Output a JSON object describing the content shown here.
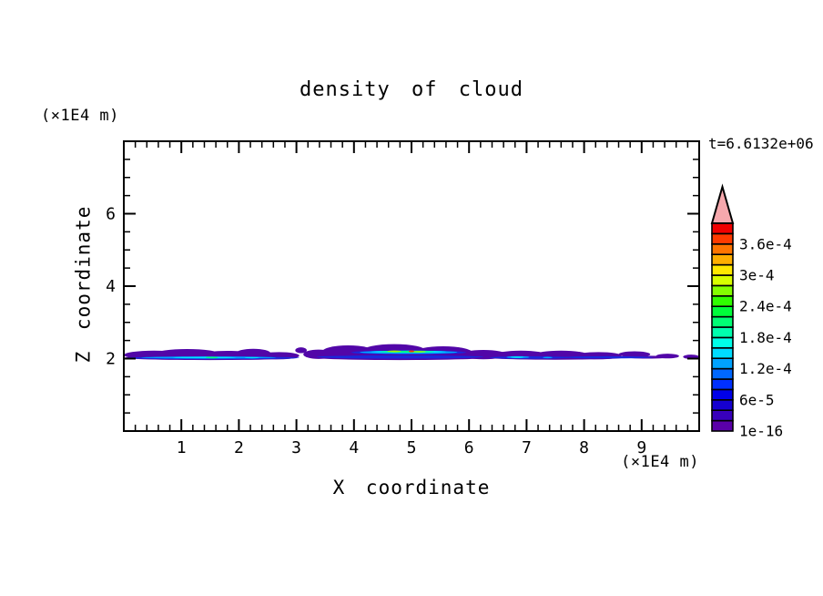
{
  "chart_data": {
    "type": "heatmap",
    "title": "density of cloud",
    "xlabel": "X coordinate",
    "ylabel": "Z coordinate",
    "x_unit_label": "(×1E4 m)",
    "y_unit_label": "(×1E4 m)",
    "time_annotation": "t=6.6132e+06",
    "xlim": [
      0,
      10
    ],
    "ylim": [
      0,
      8
    ],
    "x_ticks": [
      1,
      2,
      3,
      4,
      5,
      6,
      7,
      8,
      9
    ],
    "y_ticks": [
      2,
      4,
      6
    ],
    "x_minor_step": 0.2,
    "y_minor_step": 0.5,
    "grid": false,
    "colorbar": {
      "orientation": "vertical",
      "position": "right",
      "tick_labels_bottom_to_top": [
        "1e-16",
        "6e-5",
        "1.2e-4",
        "1.8e-4",
        "2.4e-4",
        "3e-4",
        "3.6e-4"
      ],
      "label_every_n_segments": 3,
      "segment_colors_bottom_to_top": [
        "#5a00a8",
        "#3800bc",
        "#1600d0",
        "#0000e8",
        "#0030ff",
        "#0068ff",
        "#00a2ff",
        "#00dcff",
        "#00ffe8",
        "#00ffae",
        "#00ff74",
        "#00ff3a",
        "#30ff00",
        "#84ff00",
        "#d8ff00",
        "#ffe800",
        "#ffae00",
        "#ff7400",
        "#ff3a00",
        "#f00000"
      ],
      "overflow_arrow_color": "#f6a8ad"
    },
    "band": {
      "description": "thin cloud density layer centered near z=2.0-2.2 spanning full x range 0-10; low values (1e-16 purple) everywhere, brighter core (cyan/green/yellow-green, tiny red peak) around x=4.3-5.6, cyan streak x=0.3-2.6 and x=6.7-7.0",
      "layers": [
        {
          "name": "level-1e-16-purple",
          "color": "#5206a8",
          "blobs": [
            [
              0.0,
              1.05,
              2.1,
              0.24
            ],
            [
              0.55,
              1.65,
              2.13,
              0.27
            ],
            [
              1.35,
              2.25,
              2.1,
              0.23
            ],
            [
              1.95,
              2.55,
              2.15,
              0.24
            ],
            [
              2.35,
              3.05,
              2.08,
              0.2
            ],
            [
              2.98,
              3.18,
              2.23,
              0.16
            ],
            [
              3.12,
              3.65,
              2.12,
              0.26
            ],
            [
              3.45,
              4.35,
              2.19,
              0.35
            ],
            [
              4.15,
              5.25,
              2.21,
              0.38
            ],
            [
              5.05,
              6.05,
              2.17,
              0.34
            ],
            [
              5.85,
              6.65,
              2.11,
              0.26
            ],
            [
              6.45,
              7.35,
              2.1,
              0.24
            ],
            [
              7.15,
              8.05,
              2.11,
              0.22
            ],
            [
              7.85,
              8.65,
              2.08,
              0.2
            ],
            [
              8.6,
              9.15,
              2.12,
              0.16
            ],
            [
              9.25,
              9.65,
              2.07,
              0.13
            ],
            [
              9.72,
              10.0,
              2.05,
              0.12
            ],
            [
              0.0,
              3.0,
              2.02,
              0.12
            ],
            [
              3.3,
              6.3,
              2.03,
              0.14
            ],
            [
              6.3,
              8.7,
              2.03,
              0.12
            ],
            [
              8.7,
              9.5,
              2.04,
              0.08
            ]
          ]
        },
        {
          "name": "level-blue",
          "color": "#1a28dc",
          "blobs": [
            [
              0.05,
              3.05,
              2.02,
              0.08
            ],
            [
              3.35,
              6.25,
              2.045,
              0.09
            ],
            [
              3.95,
              5.95,
              2.17,
              0.11
            ],
            [
              6.35,
              7.75,
              2.03,
              0.065
            ],
            [
              7.6,
              9.2,
              2.035,
              0.06
            ],
            [
              2.05,
              2.5,
              2.01,
              0.05
            ]
          ]
        },
        {
          "name": "level-sky",
          "color": "#00a2ff",
          "blobs": [
            [
              0.3,
              2.65,
              2.03,
              0.055
            ],
            [
              4.1,
              5.8,
              2.175,
              0.085
            ],
            [
              6.65,
              7.05,
              2.04,
              0.055
            ],
            [
              7.28,
              7.45,
              2.03,
              0.04
            ]
          ]
        },
        {
          "name": "level-cyan",
          "color": "#00e4ff",
          "blobs": [
            [
              0.85,
              1.95,
              2.03,
              0.045
            ],
            [
              4.3,
              5.6,
              2.19,
              0.06
            ],
            [
              6.72,
              6.95,
              2.04,
              0.038
            ],
            [
              2.1,
              2.35,
              2.025,
              0.038
            ]
          ]
        },
        {
          "name": "level-spring-green",
          "color": "#00ff8c",
          "blobs": [
            [
              1.42,
              1.64,
              2.03,
              0.05
            ],
            [
              4.45,
              5.4,
              2.19,
              0.05
            ]
          ]
        },
        {
          "name": "level-chartreuse",
          "color": "#9cff00",
          "blobs": [
            [
              4.58,
              4.82,
              2.2,
              0.045
            ],
            [
              5.02,
              5.25,
              2.19,
              0.04
            ]
          ]
        },
        {
          "name": "level-red-peak",
          "color": "#ff3a00",
          "blobs": [
            [
              4.95,
              5.05,
              2.2,
              0.05
            ]
          ]
        }
      ]
    }
  }
}
